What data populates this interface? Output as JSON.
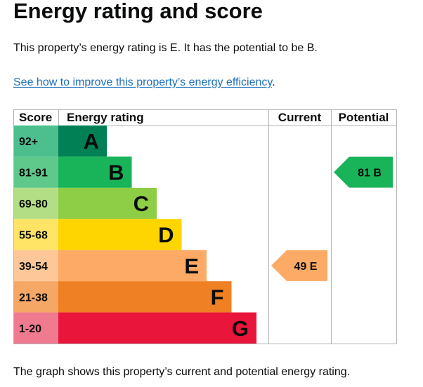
{
  "page": {
    "title": "Energy rating and score",
    "summary": "This property’s energy rating is E. It has the potential to be B.",
    "link_text": "See how to improve this property’s energy efficiency",
    "link_suffix": ".",
    "footnote": "The graph shows this property’s current and potential energy rating."
  },
  "chart_data": {
    "type": "bar",
    "headers": {
      "score": "Score",
      "rating": "Energy rating",
      "current": "Current",
      "potential": "Potential"
    },
    "bands": [
      {
        "score": "92+",
        "letter": "A",
        "color": "#008054",
        "score_bg": "#4dbf8e"
      },
      {
        "score": "81-91",
        "letter": "B",
        "color": "#19b459",
        "score_bg": "#5ec98a"
      },
      {
        "score": "69-80",
        "letter": "C",
        "color": "#8dce46",
        "score_bg": "#b3de86"
      },
      {
        "score": "55-68",
        "letter": "D",
        "color": "#ffd500",
        "score_bg": "#ffe466"
      },
      {
        "score": "39-54",
        "letter": "E",
        "color": "#fcaa65",
        "score_bg": "#fdc79a"
      },
      {
        "score": "21-38",
        "letter": "F",
        "color": "#ef8023",
        "score_bg": "#f5a765"
      },
      {
        "score": "1-20",
        "letter": "G",
        "color": "#e9153b",
        "score_bg": "#f07a8f"
      }
    ],
    "current": {
      "value": 49,
      "band": "E",
      "label": "49  E"
    },
    "potential": {
      "value": 81,
      "band": "B",
      "label": "81  B"
    }
  }
}
